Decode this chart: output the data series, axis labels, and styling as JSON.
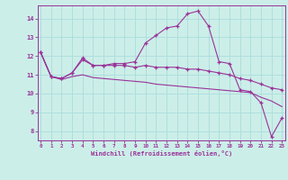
{
  "xlabel": "Windchill (Refroidissement éolien,°C)",
  "background_color": "#cceee8",
  "grid_color": "#aadddd",
  "line_color": "#993399",
  "x_ticks": [
    0,
    1,
    2,
    3,
    4,
    5,
    6,
    7,
    8,
    9,
    10,
    11,
    12,
    13,
    14,
    15,
    16,
    17,
    18,
    19,
    20,
    21,
    22,
    23
  ],
  "ylim": [
    7.5,
    14.7
  ],
  "xlim": [
    -0.3,
    23.3
  ],
  "yticks": [
    8,
    9,
    10,
    11,
    12,
    13,
    14
  ],
  "line1_x": [
    0,
    1,
    2,
    3,
    4,
    5,
    6,
    7,
    8,
    9,
    10,
    11,
    12,
    13,
    14,
    15,
    16,
    17,
    18,
    19,
    20,
    21,
    22,
    23
  ],
  "line1_y": [
    12.2,
    10.9,
    10.8,
    11.1,
    11.9,
    11.5,
    11.5,
    11.6,
    11.6,
    11.7,
    12.7,
    13.1,
    13.5,
    13.6,
    14.25,
    14.4,
    13.6,
    11.7,
    11.6,
    10.2,
    10.1,
    9.5,
    7.7,
    8.7
  ],
  "line2_x": [
    0,
    1,
    2,
    3,
    4,
    5,
    6,
    7,
    8,
    9,
    10,
    11,
    12,
    13,
    14,
    15,
    16,
    17,
    18,
    19,
    20,
    21,
    22,
    23
  ],
  "line2_y": [
    12.2,
    10.9,
    10.8,
    11.1,
    11.8,
    11.5,
    11.5,
    11.5,
    11.5,
    11.4,
    11.5,
    11.4,
    11.4,
    11.4,
    11.3,
    11.3,
    11.2,
    11.1,
    11.0,
    10.8,
    10.7,
    10.5,
    10.3,
    10.2
  ],
  "line3_x": [
    0,
    1,
    2,
    3,
    4,
    5,
    6,
    7,
    8,
    9,
    10,
    11,
    12,
    13,
    14,
    15,
    16,
    17,
    18,
    19,
    20,
    21,
    22,
    23
  ],
  "line3_y": [
    12.2,
    10.9,
    10.75,
    10.9,
    11.0,
    10.85,
    10.8,
    10.75,
    10.7,
    10.65,
    10.6,
    10.5,
    10.45,
    10.4,
    10.35,
    10.3,
    10.25,
    10.2,
    10.15,
    10.1,
    10.05,
    9.8,
    9.6,
    9.3
  ]
}
